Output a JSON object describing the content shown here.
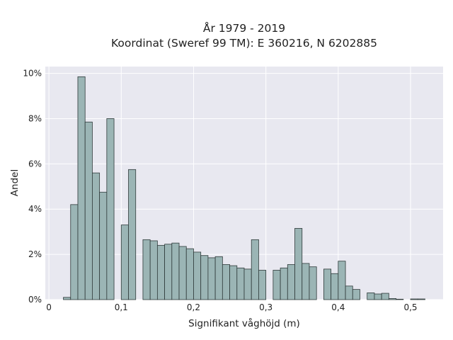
{
  "chart_data": {
    "type": "bar",
    "title": "År 1979 - 2019",
    "subtitle": "Koordinat (Sweref 99 TM): E 360216, N 6202885",
    "xlabel": "Signifikant våghöjd (m)",
    "ylabel": "Andel",
    "xlim": [
      -0.005,
      0.545
    ],
    "ylim": [
      0,
      10.3
    ],
    "x_ticks": [
      0,
      0.1,
      0.2,
      0.3,
      0.4,
      0.5
    ],
    "x_tick_labels": [
      "0",
      "0,1",
      "0,2",
      "0,3",
      "0,4",
      "0,5"
    ],
    "y_ticks": [
      0,
      2,
      4,
      6,
      8,
      10
    ],
    "y_tick_labels": [
      "0%",
      "2%",
      "4%",
      "6%",
      "8%",
      "10%"
    ],
    "grid": true,
    "bin_width": 0.01,
    "bin_starts": [
      0.02,
      0.03,
      0.04,
      0.05,
      0.06,
      0.07,
      0.08,
      0.09,
      0.1,
      0.11,
      0.12,
      0.13,
      0.14,
      0.15,
      0.16,
      0.17,
      0.18,
      0.19,
      0.2,
      0.21,
      0.22,
      0.23,
      0.24,
      0.25,
      0.26,
      0.27,
      0.28,
      0.29,
      0.3,
      0.31,
      0.32,
      0.33,
      0.34,
      0.35,
      0.36,
      0.37,
      0.38,
      0.39,
      0.4,
      0.41,
      0.42,
      0.43,
      0.44,
      0.45,
      0.46,
      0.47,
      0.48,
      0.49,
      0.5,
      0.51
    ],
    "values": [
      0.1,
      4.2,
      9.85,
      7.85,
      5.6,
      4.75,
      8.0,
      0.0,
      3.3,
      5.75,
      0.0,
      2.65,
      2.6,
      2.4,
      2.45,
      2.5,
      2.35,
      2.25,
      2.1,
      1.95,
      1.85,
      1.9,
      1.55,
      1.5,
      1.4,
      1.35,
      2.65,
      1.3,
      0.0,
      1.3,
      1.4,
      1.55,
      3.15,
      1.6,
      1.45,
      0.0,
      1.35,
      1.15,
      1.7,
      0.6,
      0.45,
      0.0,
      0.3,
      0.25,
      0.28,
      0.05,
      0.02,
      0.0,
      0.03,
      0.03
    ],
    "colors": {
      "bar_fill": "#9bb5b5",
      "bar_edge": "#2f3a3a",
      "plot_bg": "#e8e8f0",
      "grid": "#ffffff"
    }
  }
}
